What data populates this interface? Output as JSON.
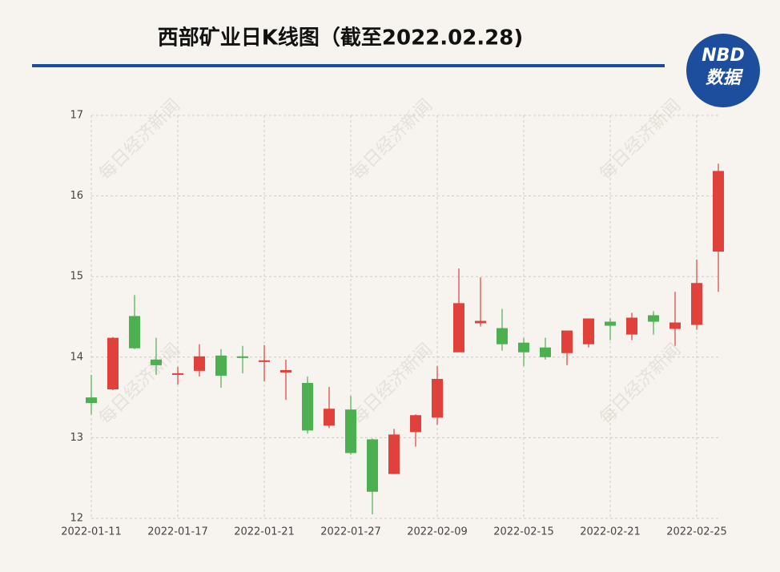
{
  "chart_data": {
    "type": "candlestick",
    "title": "西部矿业日K线图（截至2022.02.28)",
    "logo": {
      "top": "NBD",
      "bottom": "数据"
    },
    "watermark": "每日经济新闻",
    "categories": [
      "2022-01-11",
      null,
      null,
      null,
      "2022-01-17",
      null,
      null,
      null,
      "2022-01-21",
      null,
      null,
      null,
      "2022-01-27",
      null,
      null,
      null,
      "2022-02-09",
      null,
      null,
      null,
      "2022-02-15",
      null,
      null,
      null,
      "2022-02-21",
      null,
      null,
      null,
      "2022-02-25",
      null
    ],
    "open": [
      13.5,
      13.6,
      14.51,
      13.97,
      13.78,
      13.83,
      14.02,
      14.01,
      13.94,
      13.81,
      13.68,
      13.15,
      13.35,
      12.98,
      12.55,
      13.07,
      13.25,
      14.06,
      14.42,
      14.36,
      14.18,
      14.12,
      14.05,
      14.16,
      14.44,
      14.28,
      14.52,
      14.35,
      14.4,
      15.31
    ],
    "high": [
      13.78,
      14.25,
      14.77,
      14.24,
      13.88,
      14.16,
      14.1,
      14.14,
      14.15,
      13.97,
      13.76,
      13.63,
      13.52,
      12.99,
      13.11,
      13.29,
      13.89,
      15.1,
      14.99,
      14.6,
      14.24,
      14.24,
      14.33,
      14.48,
      14.48,
      14.55,
      14.57,
      14.81,
      15.21,
      16.4
    ],
    "low": [
      13.29,
      13.59,
      14.1,
      13.78,
      13.66,
      13.76,
      13.62,
      13.8,
      13.7,
      13.47,
      13.05,
      13.12,
      12.79,
      12.05,
      12.55,
      12.89,
      13.16,
      14.06,
      14.38,
      14.08,
      13.89,
      13.97,
      13.9,
      14.12,
      14.21,
      14.21,
      14.28,
      14.14,
      14.34,
      14.81
    ],
    "close": [
      13.43,
      14.24,
      14.11,
      13.9,
      13.8,
      14.01,
      13.77,
      13.99,
      13.96,
      13.84,
      13.09,
      13.36,
      12.81,
      12.33,
      13.04,
      13.28,
      13.73,
      14.67,
      14.45,
      14.16,
      14.06,
      14.0,
      14.33,
      14.48,
      14.39,
      14.49,
      14.44,
      14.43,
      14.92,
      16.31
    ],
    "up_color": "#e0413a",
    "down_color": "#4caf50",
    "ylim": [
      12,
      17
    ],
    "yticks": [
      12,
      13,
      14,
      15,
      16,
      17
    ],
    "grid": true
  }
}
